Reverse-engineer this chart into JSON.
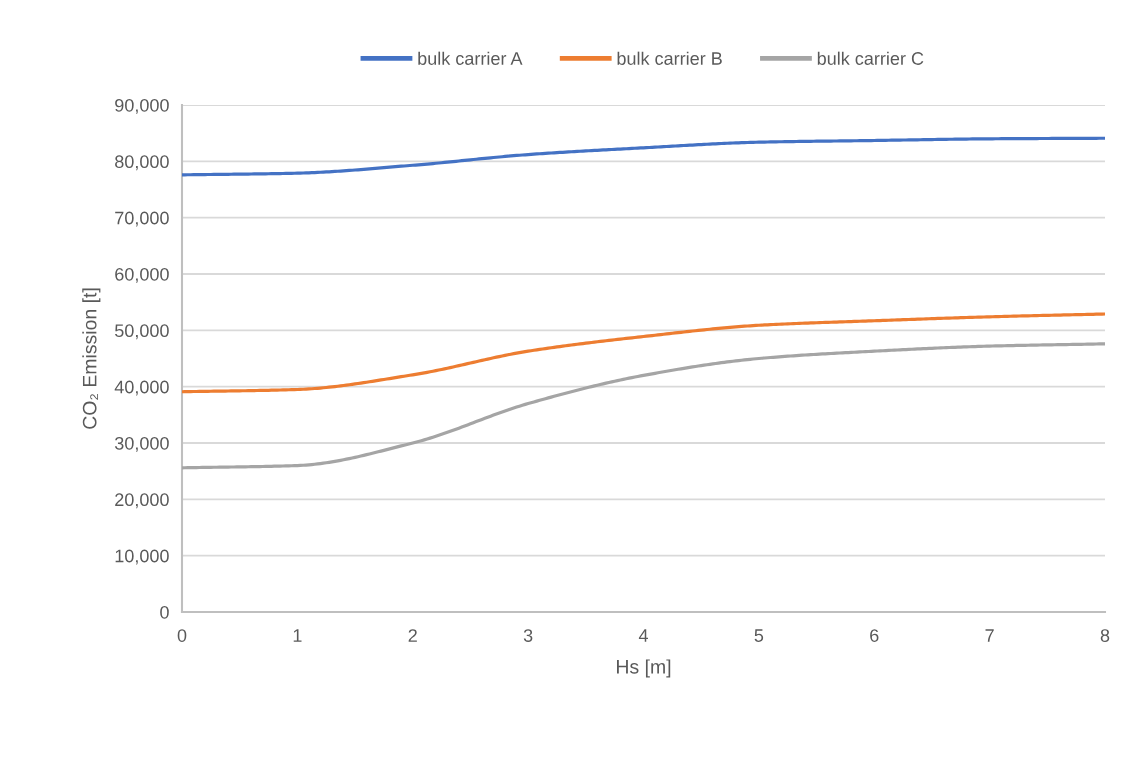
{
  "chart_data": {
    "type": "line",
    "xlabel": "Hs [m]",
    "ylabel": "CO₂ Emission [t]",
    "x": [
      0,
      1,
      2,
      3,
      4,
      5,
      6,
      7,
      8
    ],
    "series": [
      {
        "name": "bulk carrier A",
        "color": "#4472c4",
        "values": [
          77600,
          77900,
          79300,
          81200,
          82400,
          83400,
          83700,
          84000,
          84100
        ]
      },
      {
        "name": "bulk carrier B",
        "color": "#ed7d31",
        "values": [
          39100,
          39500,
          42100,
          46300,
          48900,
          50900,
          51700,
          52400,
          52900
        ]
      },
      {
        "name": "bulk carrier C",
        "color": "#a5a5a5",
        "values": [
          25600,
          26000,
          30000,
          37000,
          42000,
          45000,
          46300,
          47200,
          47600
        ]
      }
    ],
    "xlim": [
      0,
      8
    ],
    "xticks": [
      0,
      1,
      2,
      3,
      4,
      5,
      6,
      7,
      8
    ],
    "ylim": [
      0,
      90000
    ],
    "yticks": [
      0,
      {
        "value": 10000,
        "label": "10,000"
      },
      {
        "value": 20000,
        "label": "20,000"
      },
      {
        "value": 30000,
        "label": "30,000"
      },
      {
        "value": 40000,
        "label": "40,000"
      },
      {
        "value": 50000,
        "label": "50,000"
      },
      {
        "value": 60000,
        "label": "60,000"
      },
      {
        "value": 70000,
        "label": "70,000"
      },
      {
        "value": 80000,
        "label": "80,000"
      },
      {
        "value": 90000,
        "label": "90,000"
      }
    ],
    "grid": "y",
    "legend": "top",
    "marker": "none",
    "line_style": "solid"
  }
}
